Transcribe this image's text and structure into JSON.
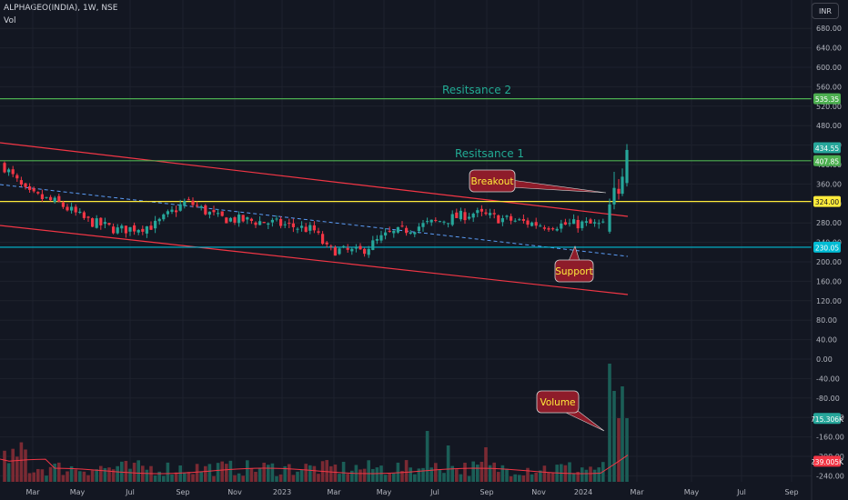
{
  "header": {
    "symbol_line": "ALPHAGEO(INDIA), 1W, NSE",
    "indicator": "Vol",
    "currency": "INR"
  },
  "chart_data": {
    "type": "candlestick",
    "title": "ALPHAGEO(INDIA), 1W, NSE",
    "y_axis": {
      "range": [
        -250,
        720
      ],
      "ticks": [
        "680.00",
        "640.00",
        "600.00",
        "560.00",
        "520.00",
        "480.00",
        "440.00",
        "400.00",
        "360.00",
        "320.00",
        "280.00",
        "240.00",
        "200.00",
        "160.00",
        "120.00",
        "80.00",
        "40.00",
        "0.00",
        "-40.00",
        "-80.00",
        "-120.00",
        "-160.00",
        "-200.00",
        "-240.00"
      ]
    },
    "x_axis": {
      "tick_labels": [
        "Mar",
        "May",
        "Jul",
        "Sep",
        "Nov",
        "2023",
        "Mar",
        "May",
        "Jul",
        "Sep",
        "Nov",
        "2024",
        "Mar",
        "May",
        "Jul",
        "Sep"
      ]
    },
    "price_tags": [
      {
        "value": 535.35,
        "label": "535.35",
        "color": "#4caf50"
      },
      {
        "value": 434.55,
        "label": "434.55",
        "color": "#26a69a"
      },
      {
        "value": 407.85,
        "label": "407.85",
        "color": "#4caf50"
      },
      {
        "value": 324.0,
        "label": "324.00",
        "color": "#ffeb3b"
      },
      {
        "value": 230.05,
        "label": "230.05",
        "color": "#00bcd4"
      },
      {
        "value": -122,
        "label": "715.306K",
        "color": "#26a69a"
      },
      {
        "value": -210,
        "label": "239.005K",
        "color": "#f23645"
      }
    ],
    "horizontal_levels": [
      {
        "value": 535.35,
        "color": "#4caf50",
        "label": "Resitsance 2"
      },
      {
        "value": 407.85,
        "color": "#4caf50",
        "label": "Resitsance 1"
      },
      {
        "value": 324.0,
        "color": "#ffeb3b"
      },
      {
        "value": 230.05,
        "color": "#00bcd4"
      }
    ],
    "callouts": [
      "Breakout",
      "Support",
      "Volume"
    ],
    "colors": {
      "up": "#26a69a",
      "down": "#f23645",
      "channel": "#f23645",
      "dashed": "#5b9cf6"
    }
  }
}
